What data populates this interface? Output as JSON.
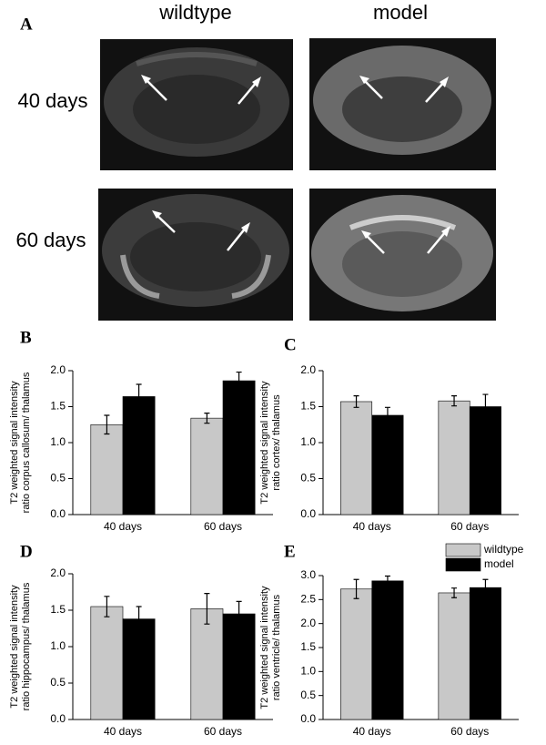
{
  "figure": {
    "panel_a": {
      "label": "A",
      "columns": [
        "wildtype",
        "model"
      ],
      "rows": [
        "40 days",
        "60 days"
      ]
    }
  },
  "chart_data": [
    {
      "type": "bar",
      "panel": "B",
      "ylabel": [
        "T2 weighted signal intensity",
        "ratio corpus callosum/ thalamus"
      ],
      "categories": [
        "40 days",
        "60 days"
      ],
      "series": [
        {
          "name": "wildtype",
          "color": "#c8c8c8",
          "values": [
            1.25,
            1.34
          ],
          "errors": [
            0.13,
            0.07
          ]
        },
        {
          "name": "model",
          "color": "#000000",
          "values": [
            1.64,
            1.86
          ],
          "errors": [
            0.17,
            0.12
          ]
        }
      ],
      "ylim": [
        0,
        2.0
      ],
      "yticks": [
        {
          "value": 0,
          "label": "0.0"
        },
        {
          "value": 0.5,
          "label": "0.5"
        },
        {
          "value": 1,
          "label": "1.0"
        },
        {
          "value": 1.5,
          "label": "1.5"
        },
        {
          "value": 2,
          "label": "2.0"
        }
      ]
    },
    {
      "type": "bar",
      "panel": "C",
      "ylabel": [
        "T2 weighted signal intensity",
        "ratio cortex/ thalamus"
      ],
      "categories": [
        "40 days",
        "60 days"
      ],
      "series": [
        {
          "name": "wildtype",
          "color": "#c8c8c8",
          "values": [
            1.57,
            1.58
          ],
          "errors": [
            0.08,
            0.07
          ]
        },
        {
          "name": "model",
          "color": "#000000",
          "values": [
            1.38,
            1.5
          ],
          "errors": [
            0.11,
            0.17
          ]
        }
      ],
      "ylim": [
        0,
        2.0
      ],
      "yticks": [
        {
          "value": 0,
          "label": "0.0"
        },
        {
          "value": 0.5,
          "label": "0.5"
        },
        {
          "value": 1,
          "label": "1.0"
        },
        {
          "value": 1.5,
          "label": "1.5"
        },
        {
          "value": 2,
          "label": "2.0"
        }
      ]
    },
    {
      "type": "bar",
      "panel": "D",
      "ylabel": [
        "T2 weighted signal intensity",
        "ratio hippocampus/ thalamus"
      ],
      "categories": [
        "40 days",
        "60 days"
      ],
      "series": [
        {
          "name": "wildtype",
          "color": "#c8c8c8",
          "values": [
            1.55,
            1.52
          ],
          "errors": [
            0.14,
            0.21
          ]
        },
        {
          "name": "model",
          "color": "#000000",
          "values": [
            1.38,
            1.45
          ],
          "errors": [
            0.17,
            0.17
          ]
        }
      ],
      "ylim": [
        0,
        2.0
      ],
      "yticks": [
        {
          "value": 0,
          "label": "0.0"
        },
        {
          "value": 0.5,
          "label": "0.5"
        },
        {
          "value": 1,
          "label": "1.0"
        },
        {
          "value": 1.5,
          "label": "1.5"
        },
        {
          "value": 2,
          "label": "2.0"
        }
      ]
    },
    {
      "type": "bar",
      "panel": "E",
      "ylabel": [
        "T2 weighted signal intensity",
        "ratio ventricle/ thalamus"
      ],
      "categories": [
        "40 days",
        "60 days"
      ],
      "series": [
        {
          "name": "wildtype",
          "color": "#c8c8c8",
          "values": [
            2.72,
            2.64
          ],
          "errors": [
            0.2,
            0.1
          ]
        },
        {
          "name": "model",
          "color": "#000000",
          "values": [
            2.89,
            2.75
          ],
          "errors": [
            0.1,
            0.17
          ]
        }
      ],
      "ylim": [
        0,
        3.0
      ],
      "yticks": [
        {
          "value": 0,
          "label": "0.0"
        },
        {
          "value": 0.5,
          "label": "0.5"
        },
        {
          "value": 1,
          "label": "1.0"
        },
        {
          "value": 1.5,
          "label": "1.5"
        },
        {
          "value": 2,
          "label": "2.0"
        },
        {
          "value": 2.5,
          "label": "2.5"
        },
        {
          "value": 3,
          "label": "3.0"
        }
      ],
      "legend": "upper right"
    }
  ]
}
